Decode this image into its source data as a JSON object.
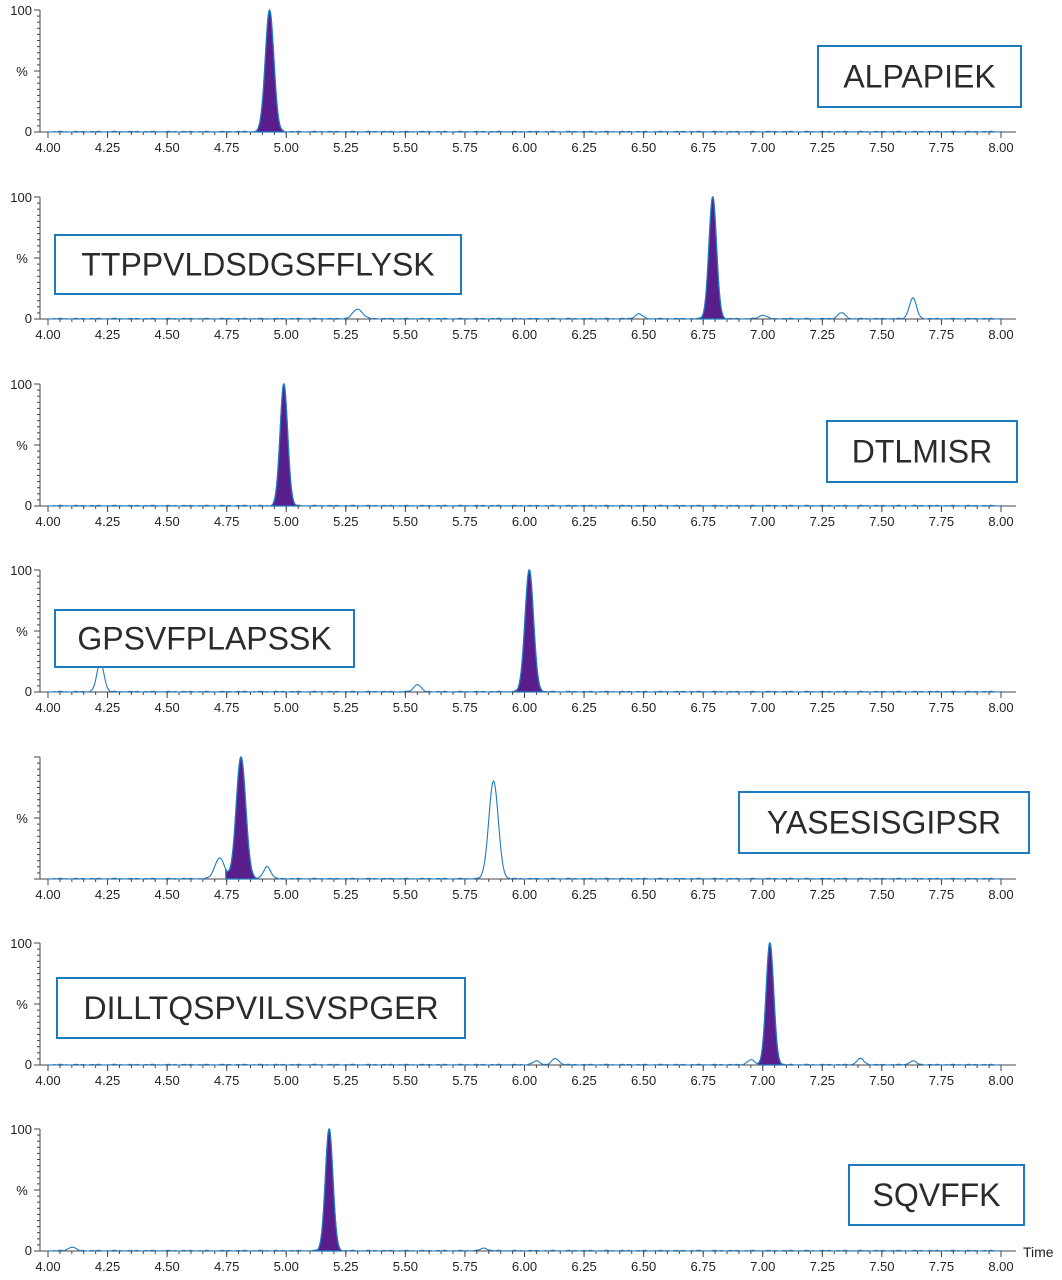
{
  "colors": {
    "trace": "#1f7bc1",
    "fill": "#5a1e8c",
    "axis": "#444444",
    "box_border": "#1f7bc1",
    "label_text": "#2b2b2b"
  },
  "x_axis_title": "Time",
  "chart_data": [
    {
      "type": "line",
      "label": "ALPAPIEK",
      "label_box_position": "right",
      "xlim": [
        4.0,
        8.0
      ],
      "ylim": [
        0,
        100
      ],
      "ylabel": "%",
      "y_ticks": [
        "0",
        "100"
      ],
      "x_ticks": [
        "4.00",
        "4.25",
        "4.50",
        "4.75",
        "5.00",
        "5.25",
        "5.50",
        "5.75",
        "6.00",
        "6.25",
        "6.50",
        "6.75",
        "7.00",
        "7.25",
        "7.50",
        "7.75",
        "8.00"
      ],
      "filled_peak": {
        "rt": 4.93,
        "height": 100,
        "sigma": 0.018
      },
      "minor_peaks": []
    },
    {
      "type": "line",
      "label": "TTPPVLDSDGSFFLYSK",
      "label_box_position": "left",
      "xlim": [
        4.0,
        8.0
      ],
      "ylim": [
        0,
        100
      ],
      "ylabel": "%",
      "y_ticks": [
        "0",
        "100"
      ],
      "x_ticks": [
        "4.00",
        "4.25",
        "4.50",
        "4.75",
        "5.00",
        "5.25",
        "5.50",
        "5.75",
        "6.00",
        "6.25",
        "6.50",
        "6.75",
        "7.00",
        "7.25",
        "7.50",
        "7.75",
        "8.00"
      ],
      "filled_peak": {
        "rt": 6.79,
        "height": 100,
        "sigma": 0.016
      },
      "minor_peaks": [
        {
          "rt": 5.3,
          "height": 8,
          "sigma": 0.02
        },
        {
          "rt": 6.48,
          "height": 4,
          "sigma": 0.015
        },
        {
          "rt": 7.0,
          "height": 3,
          "sigma": 0.015
        },
        {
          "rt": 7.33,
          "height": 5,
          "sigma": 0.015
        },
        {
          "rt": 7.63,
          "height": 17,
          "sigma": 0.015
        }
      ]
    },
    {
      "type": "line",
      "label": "DTLMISR",
      "label_box_position": "right",
      "xlim": [
        4.0,
        8.0
      ],
      "ylim": [
        0,
        100
      ],
      "ylabel": "%",
      "y_ticks": [
        "0",
        "100"
      ],
      "x_ticks": [
        "4.00",
        "4.25",
        "4.50",
        "4.75",
        "5.00",
        "5.25",
        "5.50",
        "5.75",
        "6.00",
        "6.25",
        "6.50",
        "6.75",
        "7.00",
        "7.25",
        "7.50",
        "7.75",
        "8.00"
      ],
      "filled_peak": {
        "rt": 4.99,
        "height": 100,
        "sigma": 0.016
      },
      "minor_peaks": []
    },
    {
      "type": "line",
      "label": "GPSVFPLAPSSK",
      "label_box_position": "left",
      "xlim": [
        4.0,
        8.0
      ],
      "ylim": [
        0,
        100
      ],
      "ylabel": "%",
      "y_ticks": [
        "0",
        "100"
      ],
      "x_ticks": [
        "4.00",
        "4.25",
        "4.50",
        "4.75",
        "5.00",
        "5.25",
        "5.50",
        "5.75",
        "6.00",
        "6.25",
        "6.50",
        "6.75",
        "7.00",
        "7.25",
        "7.50",
        "7.75",
        "8.00"
      ],
      "filled_peak": {
        "rt": 6.02,
        "height": 100,
        "sigma": 0.018
      },
      "minor_peaks": [
        {
          "rt": 4.22,
          "height": 24,
          "sigma": 0.015
        },
        {
          "rt": 5.55,
          "height": 6,
          "sigma": 0.015
        }
      ]
    },
    {
      "type": "line",
      "label": "YASESISGIPSR",
      "label_box_position": "right",
      "xlim": [
        4.0,
        8.0
      ],
      "ylim": [
        0,
        100
      ],
      "ylabel": "%",
      "y_ticks": [],
      "x_ticks": [
        "4.00",
        "4.25",
        "4.50",
        "4.75",
        "5.00",
        "5.25",
        "5.50",
        "5.75",
        "6.00",
        "6.25",
        "6.50",
        "6.75",
        "7.00",
        "7.25",
        "7.50",
        "7.75",
        "8.00"
      ],
      "filled_peak": {
        "rt": 4.81,
        "height": 100,
        "sigma": 0.02
      },
      "minor_peaks": [
        {
          "rt": 4.72,
          "height": 17,
          "sigma": 0.02
        },
        {
          "rt": 4.92,
          "height": 10,
          "sigma": 0.015
        },
        {
          "rt": 5.87,
          "height": 80,
          "sigma": 0.02
        }
      ]
    },
    {
      "type": "line",
      "label": "DILLTQSPVILSVSPGER",
      "label_box_position": "left",
      "xlim": [
        4.0,
        8.0
      ],
      "ylim": [
        0,
        100
      ],
      "ylabel": "%",
      "y_ticks": [
        "0",
        "100"
      ],
      "x_ticks": [
        "4.00",
        "4.25",
        "4.50",
        "4.75",
        "5.00",
        "5.25",
        "5.50",
        "5.75",
        "6.00",
        "6.25",
        "6.50",
        "6.75",
        "7.00",
        "7.25",
        "7.50",
        "7.75",
        "8.00"
      ],
      "filled_peak": {
        "rt": 7.03,
        "height": 100,
        "sigma": 0.016
      },
      "minor_peaks": [
        {
          "rt": 6.05,
          "height": 3,
          "sigma": 0.015
        },
        {
          "rt": 6.13,
          "height": 5,
          "sigma": 0.015
        },
        {
          "rt": 6.95,
          "height": 4,
          "sigma": 0.015
        },
        {
          "rt": 7.41,
          "height": 5,
          "sigma": 0.015
        },
        {
          "rt": 7.63,
          "height": 3,
          "sigma": 0.015
        }
      ]
    },
    {
      "type": "line",
      "label": "SQVFFK",
      "label_box_position": "right",
      "xlim": [
        4.0,
        8.0
      ],
      "ylim": [
        0,
        100
      ],
      "ylabel": "%",
      "y_ticks": [
        "0",
        "100"
      ],
      "x_ticks": [
        "4.00",
        "4.25",
        "4.50",
        "4.75",
        "5.00",
        "5.25",
        "5.50",
        "5.75",
        "6.00",
        "6.25",
        "6.50",
        "6.75",
        "7.00",
        "7.25",
        "7.50",
        "7.75",
        "8.00"
      ],
      "filled_peak": {
        "rt": 5.18,
        "height": 100,
        "sigma": 0.016
      },
      "minor_peaks": [
        {
          "rt": 4.1,
          "height": 3,
          "sigma": 0.015
        },
        {
          "rt": 5.83,
          "height": 2,
          "sigma": 0.015
        }
      ]
    }
  ]
}
